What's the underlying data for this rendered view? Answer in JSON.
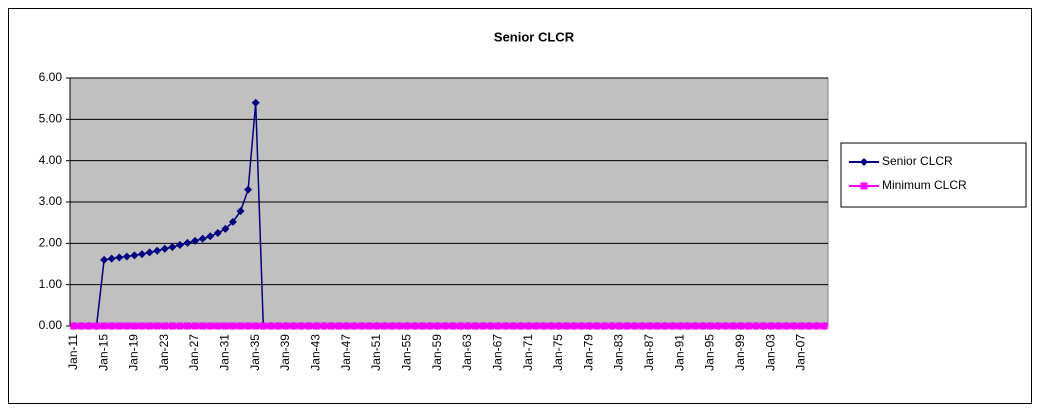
{
  "chart_data": {
    "type": "line",
    "title": "Senior CLCR",
    "categories": [
      "Jan-11",
      null,
      null,
      null,
      "Jan-15",
      null,
      null,
      null,
      "Jan-19",
      null,
      null,
      null,
      "Jan-23",
      null,
      null,
      null,
      "Jan-27",
      null,
      null,
      null,
      "Jan-31",
      null,
      null,
      null,
      "Jan-35",
      null,
      null,
      null,
      "Jan-39",
      null,
      null,
      null,
      "Jan-43",
      null,
      null,
      null,
      "Jan-47",
      null,
      null,
      null,
      "Jan-51",
      null,
      null,
      null,
      "Jan-55",
      null,
      null,
      null,
      "Jan-59",
      null,
      null,
      null,
      "Jan-63",
      null,
      null,
      null,
      "Jan-67",
      null,
      null,
      null,
      "Jan-71",
      null,
      null,
      null,
      "Jan-75",
      null,
      null,
      null,
      "Jan-79",
      null,
      null,
      null,
      "Jan-83",
      null,
      null,
      null,
      "Jan-87",
      null,
      null,
      null,
      "Jan-91",
      null,
      null,
      null,
      "Jan-95",
      null,
      null,
      null,
      "Jan-99",
      null,
      null,
      null,
      "Jan-03",
      null,
      null,
      null,
      "Jan-07",
      null,
      null,
      null
    ],
    "series": [
      {
        "name": "Senior CLCR",
        "color": "#000080",
        "marker": "diamond",
        "values": [
          0,
          0,
          0,
          0,
          1.6,
          1.63,
          1.66,
          1.68,
          1.71,
          1.74,
          1.78,
          1.82,
          1.87,
          1.91,
          1.96,
          2.01,
          2.06,
          2.11,
          2.17,
          2.25,
          2.35,
          2.52,
          2.78,
          3.3,
          5.4,
          0,
          0,
          0,
          0,
          0,
          0,
          0,
          0,
          0,
          0,
          0,
          0,
          0,
          0,
          0,
          0,
          0,
          0,
          0,
          0,
          0,
          0,
          0,
          0,
          0,
          0,
          0,
          0,
          0,
          0,
          0,
          0,
          0,
          0,
          0,
          0,
          0,
          0,
          0,
          0,
          0,
          0,
          0,
          0,
          0,
          0,
          0,
          0,
          0,
          0,
          0,
          0,
          0,
          0,
          0,
          0,
          0,
          0,
          0,
          0,
          0,
          0,
          0,
          0,
          0,
          0,
          0,
          0,
          0,
          0,
          0,
          0,
          0,
          0,
          0
        ]
      },
      {
        "name": "Minimum CLCR",
        "color": "#ff00ff",
        "marker": "square",
        "values": [
          0,
          0,
          0,
          0,
          0,
          0,
          0,
          0,
          0,
          0,
          0,
          0,
          0,
          0,
          0,
          0,
          0,
          0,
          0,
          0,
          0,
          0,
          0,
          0,
          0,
          0,
          0,
          0,
          0,
          0,
          0,
          0,
          0,
          0,
          0,
          0,
          0,
          0,
          0,
          0,
          0,
          0,
          0,
          0,
          0,
          0,
          0,
          0,
          0,
          0,
          0,
          0,
          0,
          0,
          0,
          0,
          0,
          0,
          0,
          0,
          0,
          0,
          0,
          0,
          0,
          0,
          0,
          0,
          0,
          0,
          0,
          0,
          0,
          0,
          0,
          0,
          0,
          0,
          0,
          0,
          0,
          0,
          0,
          0,
          0,
          0,
          0,
          0,
          0,
          0,
          0,
          0,
          0,
          0,
          0,
          0,
          0,
          0,
          0,
          0
        ]
      }
    ],
    "ylim": [
      0,
      6
    ],
    "yticks": [
      {
        "value": 0,
        "label": "0.00"
      },
      {
        "value": 1,
        "label": "1.00"
      },
      {
        "value": 2,
        "label": "2.00"
      },
      {
        "value": 3,
        "label": "3.00"
      },
      {
        "value": 4,
        "label": "4.00"
      },
      {
        "value": 5,
        "label": "5.00"
      },
      {
        "value": 6,
        "label": "6.00"
      }
    ],
    "grid": true,
    "legend": "right",
    "plot_background": "#c0c0c0"
  }
}
